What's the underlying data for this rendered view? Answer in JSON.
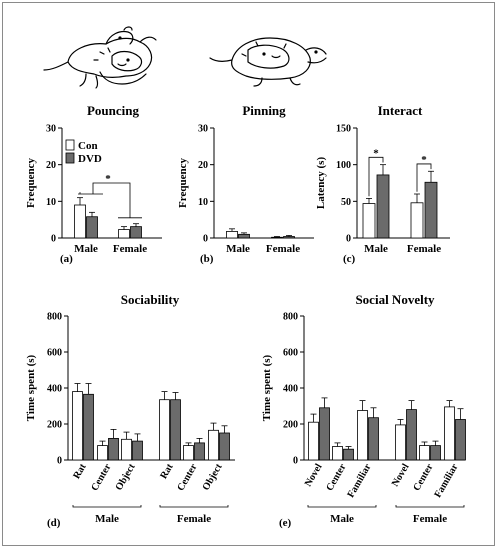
{
  "legend": {
    "con": "Con",
    "dvd": "DVD"
  },
  "colors": {
    "con": "#ffffff",
    "dvd": "#6b6b6b",
    "stroke": "#000000"
  },
  "illustrations": [
    "rat-pouncing-drawing",
    "rat-pinning-drawing"
  ],
  "chart_data": [
    {
      "id": "a",
      "type": "bar",
      "panel_label": "(a)",
      "title": "Pouncing",
      "ylabel": "Frequency",
      "ylim": [
        0,
        30
      ],
      "yticks": [
        0,
        10,
        20,
        30
      ],
      "categories": [
        "Male",
        "Female"
      ],
      "series": [
        {
          "name": "Con",
          "values": [
            9,
            2.3
          ],
          "errors": [
            2,
            0.8
          ]
        },
        {
          "name": "DVD",
          "values": [
            5.8,
            3.1
          ],
          "errors": [
            1.2,
            0.8
          ]
        }
      ],
      "annotation": "*",
      "legend": "top-left"
    },
    {
      "id": "b",
      "type": "bar",
      "panel_label": "(b)",
      "title": "Pinning",
      "ylabel": "Frequency",
      "ylim": [
        0,
        30
      ],
      "yticks": [
        0,
        10,
        20,
        30
      ],
      "categories": [
        "Male",
        "Female"
      ],
      "series": [
        {
          "name": "Con",
          "values": [
            1.8,
            0.2
          ],
          "errors": [
            0.7,
            0.2
          ]
        },
        {
          "name": "DVD",
          "values": [
            1.0,
            0.4
          ],
          "errors": [
            0.4,
            0.3
          ]
        }
      ]
    },
    {
      "id": "c",
      "type": "bar",
      "panel_label": "(c)",
      "title": "Interact",
      "ylabel": "Latency (s)",
      "ylim": [
        0,
        150
      ],
      "yticks": [
        0,
        50,
        100,
        150
      ],
      "categories": [
        "Male",
        "Female"
      ],
      "series": [
        {
          "name": "Con",
          "values": [
            47,
            48
          ],
          "errors": [
            7,
            12
          ]
        },
        {
          "name": "DVD",
          "values": [
            86,
            76
          ],
          "errors": [
            14,
            15
          ]
        }
      ],
      "annotation": "*"
    },
    {
      "id": "d",
      "type": "bar",
      "panel_label": "(d)",
      "title": "Sociability",
      "ylabel": "Time spent (s)",
      "ylim": [
        0,
        800
      ],
      "yticks": [
        0,
        200,
        400,
        600,
        800
      ],
      "groups": [
        "Male",
        "Female"
      ],
      "categories": [
        "Rat",
        "Center",
        "Object",
        "Rat",
        "Center",
        "Object"
      ],
      "series": [
        {
          "name": "Con",
          "values": [
            380,
            80,
            115,
            335,
            80,
            165
          ],
          "errors": [
            45,
            25,
            40,
            45,
            15,
            40
          ]
        },
        {
          "name": "DVD",
          "values": [
            365,
            120,
            105,
            335,
            95,
            150
          ],
          "errors": [
            60,
            50,
            40,
            40,
            25,
            40
          ]
        }
      ]
    },
    {
      "id": "e",
      "type": "bar",
      "panel_label": "(e)",
      "title": "Social Novelty",
      "ylabel": "Time spent (s)",
      "ylim": [
        0,
        800
      ],
      "yticks": [
        0,
        200,
        400,
        600,
        800
      ],
      "groups": [
        "Male",
        "Female"
      ],
      "categories": [
        "Novel",
        "Center",
        "Familiar",
        "Novel",
        "Center",
        "Familiar"
      ],
      "series": [
        {
          "name": "Con",
          "values": [
            210,
            75,
            275,
            195,
            80,
            295
          ],
          "errors": [
            45,
            20,
            55,
            30,
            20,
            35
          ]
        },
        {
          "name": "DVD",
          "values": [
            290,
            60,
            235,
            280,
            80,
            225
          ],
          "errors": [
            55,
            15,
            55,
            50,
            25,
            60
          ]
        }
      ]
    }
  ]
}
